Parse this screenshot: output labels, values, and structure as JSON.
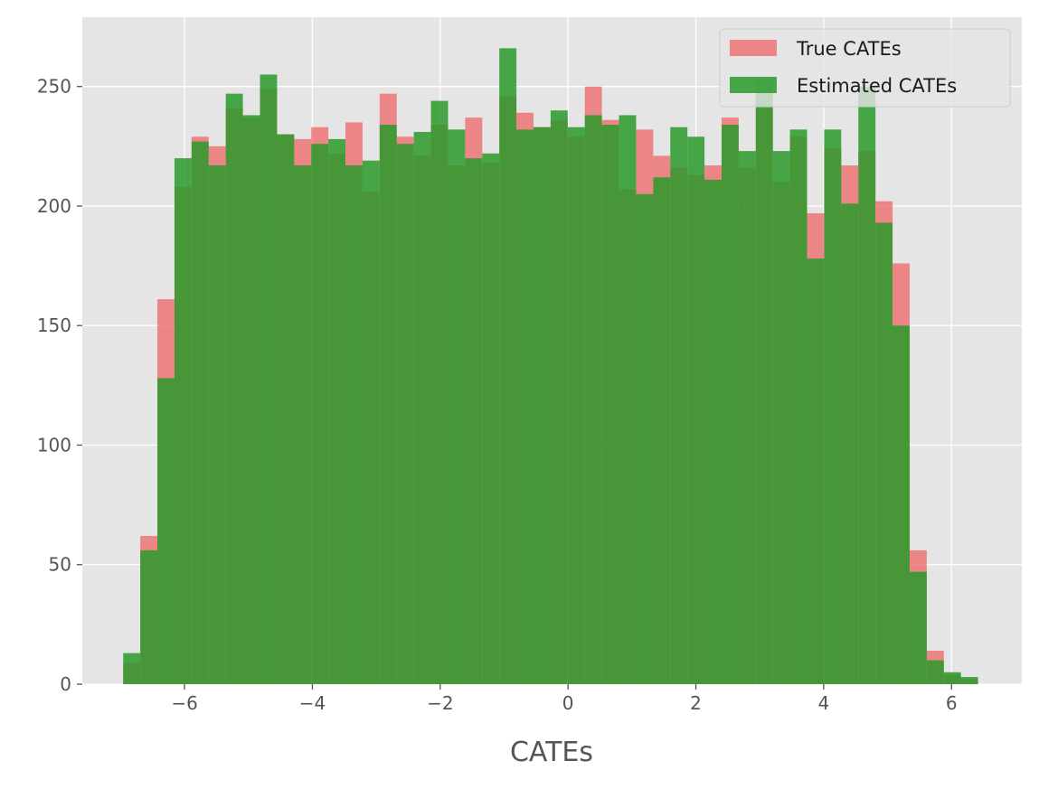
{
  "chart_data": {
    "type": "histogram",
    "title": "",
    "xlabel": "CATEs",
    "ylabel": "",
    "xlim": [
      -7.6,
      7.1
    ],
    "ylim": [
      0,
      279
    ],
    "grid": true,
    "legend_position": "top-right",
    "bin_start": -6.96,
    "bin_width": 0.2675,
    "x_ticks": [
      -6,
      -4,
      -2,
      0,
      2,
      4,
      6
    ],
    "x_tick_labels": [
      "−6",
      "−4",
      "−2",
      "0",
      "2",
      "4",
      "6"
    ],
    "y_ticks": [
      0,
      50,
      100,
      150,
      200,
      250
    ],
    "y_tick_labels": [
      "0",
      "50",
      "100",
      "150",
      "200",
      "250"
    ],
    "series": [
      {
        "name": "True CATEs",
        "color": "#ee6666",
        "opacity": 0.75,
        "values": [
          9,
          62,
          161,
          208,
          229,
          225,
          241,
          237,
          249,
          230,
          228,
          233,
          222,
          235,
          206,
          247,
          229,
          221,
          234,
          217,
          237,
          218,
          246,
          239,
          233,
          236,
          229,
          250,
          236,
          207,
          232,
          221,
          216,
          213,
          217,
          237,
          216,
          241,
          210,
          229,
          197,
          224,
          217,
          223,
          202,
          176,
          56,
          14,
          4,
          2
        ]
      },
      {
        "name": "Estimated CATEs",
        "color": "#2a9a2a",
        "opacity": 0.85,
        "values": [
          13,
          56,
          128,
          220,
          227,
          217,
          247,
          238,
          255,
          230,
          217,
          226,
          228,
          217,
          219,
          234,
          226,
          231,
          244,
          232,
          220,
          222,
          266,
          232,
          233,
          240,
          233,
          238,
          234,
          238,
          205,
          212,
          233,
          229,
          211,
          234,
          223,
          253,
          223,
          232,
          178,
          232,
          201,
          250,
          193,
          150,
          47,
          10,
          5,
          3
        ]
      }
    ]
  },
  "legend": {
    "items": [
      {
        "label": "True CATEs",
        "color": "#ee6666"
      },
      {
        "label": "Estimated CATEs",
        "color": "#2a9a2a"
      }
    ]
  }
}
